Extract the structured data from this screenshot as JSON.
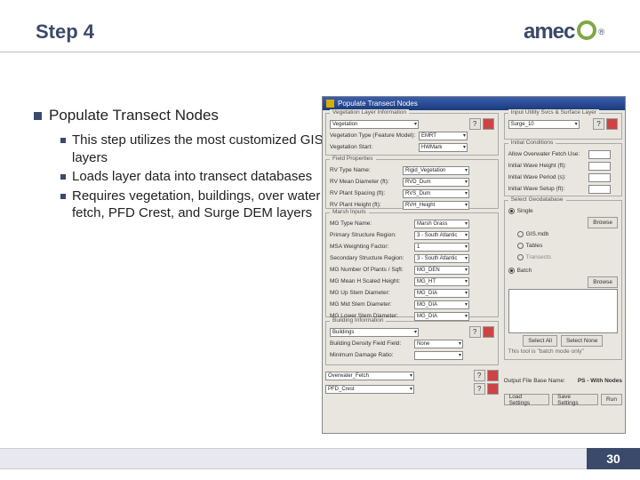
{
  "header": {
    "title": "Step 4",
    "logo_text": "amec",
    "logo_color": "#3b4a6b",
    "logo_circle_color": "#7fa843"
  },
  "content": {
    "main": "Populate Transect Nodes",
    "subs": [
      "This step utilizes the most customized GIS layers",
      "Loads layer data into transect databases",
      "Requires vegetation, buildings, over water fetch, PFD Crest, and Surge DEM layers"
    ]
  },
  "dialog": {
    "title": "Populate Transect Nodes",
    "veg_layer": {
      "title": "Vegetation Layer Information",
      "field": "Vegetation",
      "help": "?",
      "veg_type_label": "Vegetation Type (Feature Model):",
      "veg_type_value": "EMRT",
      "veg_start_label": "Vegetation Start:",
      "veg_start_value": "HWMark"
    },
    "field_props": {
      "title": "Field Properties",
      "rows": [
        {
          "label": "RV Type Name:",
          "value": "Rigid_Vegetation"
        },
        {
          "label": "RV Mean Diameter (ft):",
          "value": "RVD_Dum"
        },
        {
          "label": "RV Plant Spacing (ft):",
          "value": "RVS_Dum"
        },
        {
          "label": "RV Plant Height (ft):",
          "value": "RVH_Height"
        }
      ]
    },
    "marsh": {
      "title": "Marsh Inputs",
      "rows": [
        {
          "label": "MG Type Name:",
          "value": "Marsh Grass"
        },
        {
          "label": "Primary Structure Region:",
          "value": "3 - South Atlantic"
        },
        {
          "label": "MSA Weighting Factor:",
          "value": "1"
        },
        {
          "label": "Secondary Structure Region:",
          "value": "3 - South Atlantic"
        },
        {
          "label": "MG Number Of Plants / Sqft:",
          "value": "MG_DEN"
        },
        {
          "label": "MG Mean H Scaled Height:",
          "value": "MG_HT"
        },
        {
          "label": "MG Up Stem Diameter:",
          "value": "MG_DIA"
        },
        {
          "label": "MG Mid Stem Diameter:",
          "value": "MG_DIA"
        },
        {
          "label": "MG Lower Stem Diameter:",
          "value": "MG_DIA"
        }
      ]
    },
    "building": {
      "title": "Building Information",
      "field": "Buildings",
      "rows": [
        {
          "label": "Building Density Field Field:",
          "value": "None"
        },
        {
          "label": "Minimum Damage Ratio:",
          "value": ""
        }
      ]
    },
    "svcs": {
      "title": "Input Utility Svcs & Surface Layer",
      "field": "Surge_10"
    },
    "initial": {
      "title": "Initial Conditions",
      "rows": [
        {
          "label": "Allow Overwater Fetch Use:",
          "value": ""
        },
        {
          "label": "Initial Wave Height (ft):",
          "value": ""
        },
        {
          "label": "Initial Wave Period (s):",
          "value": ""
        },
        {
          "label": "Initial Wave Setup (ft):",
          "value": ""
        }
      ]
    },
    "geodb": {
      "title": "Select Geodatabase",
      "single": "Single",
      "batch": "Batch",
      "browse": "Browse",
      "gis_item": "GIS.mdb",
      "tables": "Tables",
      "transects": "Transects",
      "select_all": "Select All",
      "select_none": "Select None",
      "note": "This tool is \"batch mode only\""
    },
    "output": {
      "label": "Output File Base Name:",
      "value": "PS - With Nodes"
    },
    "bottom_left": {
      "row1": "Overwater_Fetch",
      "row2": "PFD_Crest"
    },
    "buttons": {
      "load": "Load Settings",
      "save": "Save Settings",
      "run": "Run"
    }
  },
  "footer": {
    "page": "30"
  }
}
